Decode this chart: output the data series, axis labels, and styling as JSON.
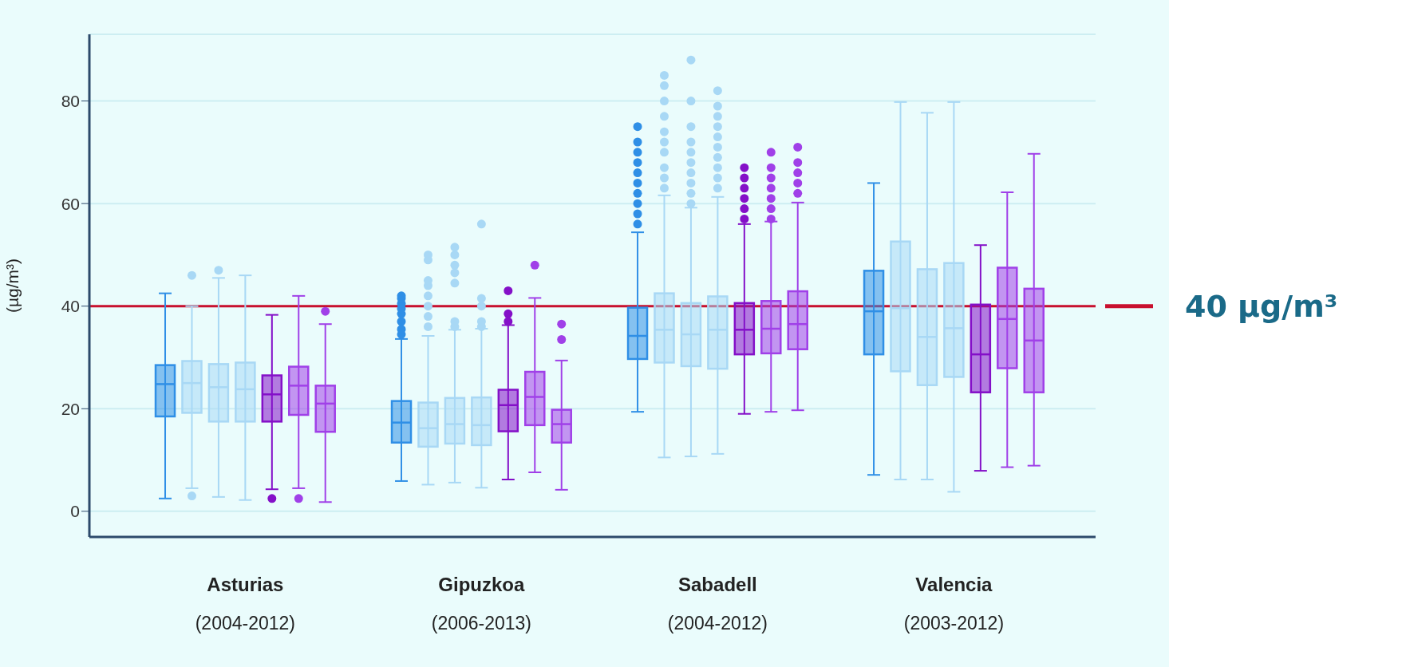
{
  "chart_data": {
    "type": "box",
    "ylabel": "(µg/m³)",
    "categories": [
      "Asturias\n(2004-2012)",
      "Gipuzkoa\n(2006-2013)",
      "Sabadell\n(2004-2012)",
      "Valencia\n(2003-2012)"
    ],
    "ylim": [
      -5,
      93
    ],
    "yticks": [
      0,
      20,
      40,
      60,
      80
    ],
    "grid": "y",
    "ref_lines": [
      {
        "axis": "y",
        "value": 40,
        "label": "40 µg/m³",
        "color": "#c8102e"
      }
    ],
    "series": [
      {
        "color": "#2f8fe6",
        "boxes": [
          {
            "low": 2.5,
            "q1": 18.5,
            "median": 24.8,
            "q3": 28.5,
            "high": 42.5
          },
          {
            "low": 5.9,
            "q1": 13.4,
            "median": 17.3,
            "q3": 21.5,
            "high": 33.6,
            "outliers": [
              34.5,
              35.5,
              37,
              38.5,
              39.5,
              40.5,
              41.5,
              42
            ]
          },
          {
            "low": 19.4,
            "q1": 29.7,
            "median": 34.2,
            "q3": 39.7,
            "high": 54.4,
            "outliers": [
              56,
              58,
              60,
              62,
              64,
              66,
              68,
              70,
              72,
              75
            ]
          },
          {
            "low": 7.1,
            "q1": 30.6,
            "median": 39,
            "q3": 46.9,
            "high": 64
          }
        ]
      },
      {
        "color": "#a8d8f5",
        "boxes": [
          {
            "low": 4.5,
            "q1": 19.2,
            "median": 25,
            "q3": 29.3,
            "high": 40,
            "outliers": [
              46,
              3
            ]
          },
          {
            "low": 5.2,
            "q1": 12.6,
            "median": 16.2,
            "q3": 21.2,
            "high": 34.2,
            "outliers": [
              36,
              38,
              40,
              42,
              44,
              45,
              49,
              50
            ]
          },
          {
            "low": 10.5,
            "q1": 29,
            "median": 35.4,
            "q3": 42.5,
            "high": 61.6,
            "outliers": [
              63,
              65,
              67,
              70,
              72,
              74,
              77,
              80,
              83,
              85
            ]
          },
          {
            "low": 6.2,
            "q1": 27.3,
            "median": 39.6,
            "q3": 52.6,
            "high": 79.8
          }
        ]
      },
      {
        "color": "#a8d8f5",
        "boxes": [
          {
            "low": 2.8,
            "q1": 17.5,
            "median": 24.2,
            "q3": 28.7,
            "high": 45.5,
            "outliers": [
              47
            ]
          },
          {
            "low": 5.6,
            "q1": 13.2,
            "median": 17,
            "q3": 22.1,
            "high": 35.4,
            "outliers": [
              36,
              37,
              44.5,
              46.5,
              48,
              50,
              51.5
            ]
          },
          {
            "low": 10.7,
            "q1": 28.3,
            "median": 34.5,
            "q3": 40.6,
            "high": 59.2,
            "outliers": [
              60,
              62,
              64,
              66,
              68,
              70,
              72,
              75,
              80,
              88
            ]
          },
          {
            "low": 6.2,
            "q1": 24.6,
            "median": 34,
            "q3": 47.2,
            "high": 77.7
          }
        ]
      },
      {
        "color": "#a8d8f5",
        "boxes": [
          {
            "low": 2.2,
            "q1": 17.5,
            "median": 23.8,
            "q3": 29,
            "high": 46
          },
          {
            "low": 4.6,
            "q1": 12.9,
            "median": 16.8,
            "q3": 22.2,
            "high": 35.6,
            "outliers": [
              36,
              37,
              40,
              41.5,
              56
            ]
          },
          {
            "low": 11.2,
            "q1": 27.8,
            "median": 35.4,
            "q3": 41.9,
            "high": 61.3,
            "outliers": [
              63,
              65,
              67,
              69,
              71,
              73,
              75,
              77,
              79,
              82
            ]
          },
          {
            "low": 3.8,
            "q1": 26.2,
            "median": 35.7,
            "q3": 48.4,
            "high": 79.8
          }
        ]
      },
      {
        "color": "#8410c8",
        "boxes": [
          {
            "low": 4.3,
            "q1": 17.5,
            "median": 22.8,
            "q3": 26.5,
            "high": 38.3,
            "outliers": [
              2.5
            ]
          },
          {
            "low": 6.2,
            "q1": 15.6,
            "median": 20.7,
            "q3": 23.7,
            "high": 36.3,
            "outliers": [
              37,
              38.5,
              43
            ]
          },
          {
            "low": 19,
            "q1": 30.6,
            "median": 35.4,
            "q3": 40.6,
            "high": 56,
            "outliers": [
              57,
              59,
              61,
              63,
              65,
              67
            ]
          },
          {
            "low": 7.9,
            "q1": 23.2,
            "median": 30.6,
            "q3": 40.3,
            "high": 51.9
          }
        ]
      },
      {
        "color": "#a040e8",
        "boxes": [
          {
            "low": 4.5,
            "q1": 18.8,
            "median": 24.5,
            "q3": 28.2,
            "high": 42,
            "outliers": [
              2.5
            ]
          },
          {
            "low": 7.6,
            "q1": 16.8,
            "median": 22.3,
            "q3": 27.2,
            "high": 41.6,
            "outliers": [
              48
            ]
          },
          {
            "low": 19.4,
            "q1": 30.8,
            "median": 35.6,
            "q3": 41,
            "high": 56.5,
            "outliers": [
              57,
              59,
              61,
              63,
              65,
              67,
              70
            ]
          },
          {
            "low": 8.6,
            "q1": 27.9,
            "median": 37.5,
            "q3": 47.5,
            "high": 62.2
          }
        ]
      },
      {
        "color": "#a040e8",
        "boxes": [
          {
            "low": 1.8,
            "q1": 15.5,
            "median": 21,
            "q3": 24.5,
            "high": 36.5,
            "outliers": [
              39
            ]
          },
          {
            "low": 4.2,
            "q1": 13.4,
            "median": 17,
            "q3": 19.8,
            "high": 29.4,
            "outliers": [
              33.5,
              36.5
            ]
          },
          {
            "low": 19.7,
            "q1": 31.6,
            "median": 36.5,
            "q3": 42.9,
            "high": 60.2,
            "outliers": [
              62,
              64,
              66,
              68,
              71
            ]
          },
          {
            "low": 8.9,
            "q1": 23.2,
            "median": 33.3,
            "q3": 43.4,
            "high": 69.7
          }
        ]
      }
    ]
  }
}
